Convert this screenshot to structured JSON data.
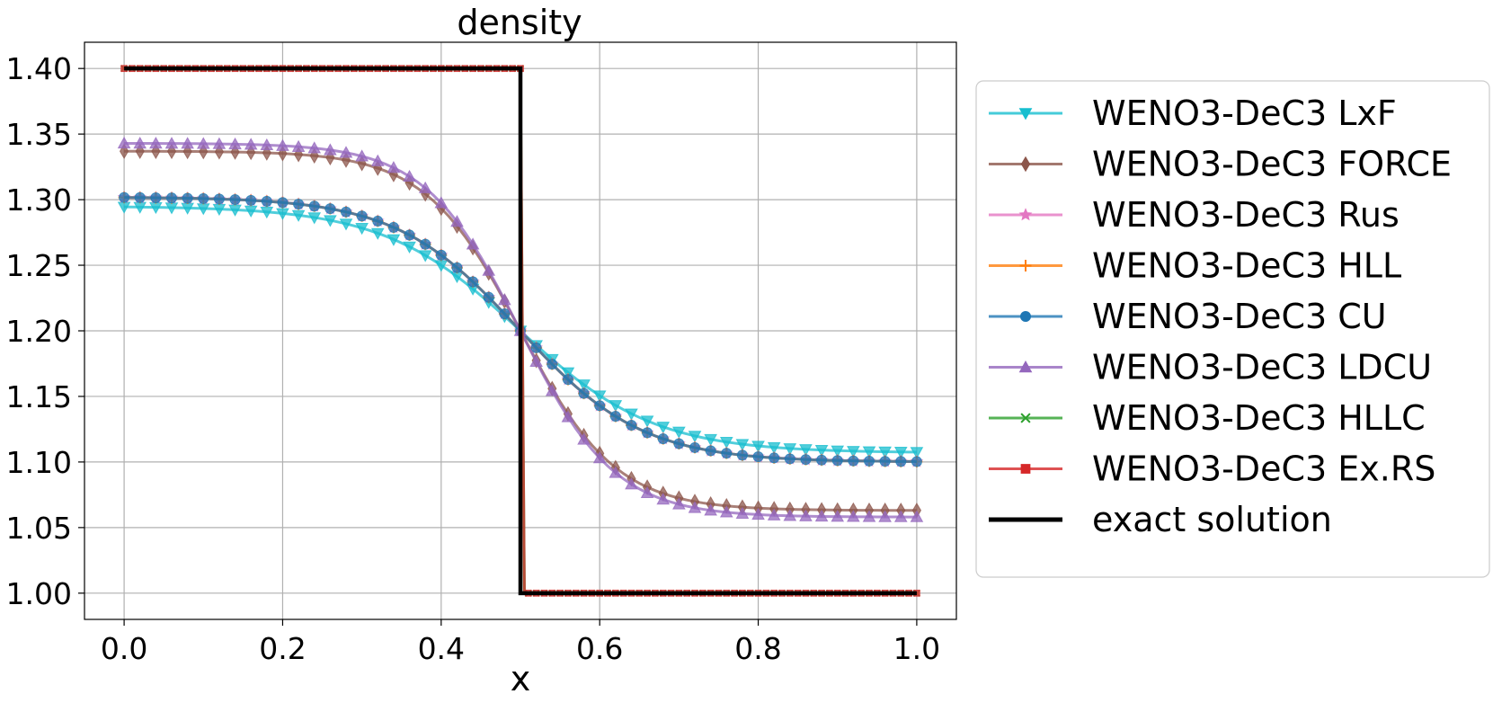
{
  "chart_data": {
    "type": "line",
    "title": "density",
    "xlabel": "x",
    "ylabel": "",
    "xlim": [
      -0.05,
      1.05
    ],
    "ylim": [
      0.98,
      1.42
    ],
    "xticks": [
      0.0,
      0.2,
      0.4,
      0.6,
      0.8,
      1.0
    ],
    "xtick_labels": [
      "0.0",
      "0.2",
      "0.4",
      "0.6",
      "0.8",
      "1.0"
    ],
    "yticks": [
      1.0,
      1.05,
      1.1,
      1.15,
      1.2,
      1.25,
      1.3,
      1.35,
      1.4
    ],
    "ytick_labels": [
      "1.00",
      "1.05",
      "1.10",
      "1.15",
      "1.20",
      "1.25",
      "1.30",
      "1.35",
      "1.40"
    ],
    "grid": true,
    "legend_position": "outside-right",
    "x_points": 101,
    "series": [
      {
        "name": "WENO3-DeC3 LxF",
        "color": "#17becf",
        "marker": "triangle-down",
        "kind": "smooth",
        "left": 1.295,
        "right": 1.107,
        "center": 1.2,
        "width": 0.17
      },
      {
        "name": "WENO3-DeC3 FORCE",
        "color": "#8c564b",
        "marker": "diamond",
        "kind": "smooth",
        "left": 1.337,
        "right": 1.063,
        "center": 1.2,
        "width": 0.12
      },
      {
        "name": "WENO3-DeC3 Rus",
        "color": "#e377c2",
        "marker": "star",
        "kind": "smooth",
        "left": 1.302,
        "right": 1.1,
        "center": 1.2,
        "width": 0.155
      },
      {
        "name": "WENO3-DeC3 HLL",
        "color": "#ff7f0e",
        "marker": "plus",
        "kind": "smooth",
        "left": 1.302,
        "right": 1.1,
        "center": 1.2,
        "width": 0.155
      },
      {
        "name": "WENO3-DeC3 CU",
        "color": "#1f77b4",
        "marker": "circle",
        "kind": "smooth",
        "left": 1.302,
        "right": 1.1,
        "center": 1.2,
        "width": 0.155
      },
      {
        "name": "WENO3-DeC3 LDCU",
        "color": "#9467bd",
        "marker": "triangle-up",
        "kind": "smooth",
        "left": 1.343,
        "right": 1.058,
        "center": 1.2,
        "width": 0.12
      },
      {
        "name": "WENO3-DeC3 HLLC",
        "color": "#2ca02c",
        "marker": "x",
        "kind": "step",
        "left": 1.4,
        "right": 1.0,
        "jump_at": 0.5
      },
      {
        "name": "WENO3-DeC3 Ex.RS",
        "color": "#d62728",
        "marker": "square",
        "kind": "step",
        "left": 1.4,
        "right": 1.0,
        "jump_at": 0.5
      },
      {
        "name": "exact solution",
        "color": "#000000",
        "marker": "none",
        "kind": "exact",
        "left": 1.4,
        "right": 1.0,
        "jump_at": 0.5
      }
    ]
  }
}
